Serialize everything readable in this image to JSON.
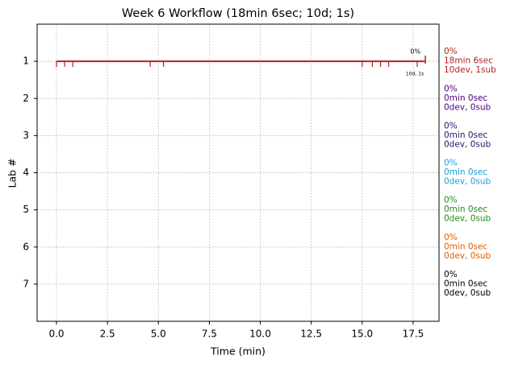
{
  "chart_data": {
    "type": "timeline",
    "title": "Week 6 Workflow (18min 6sec; 10d; 1s)",
    "x_label": "Time (min)",
    "y_label": "Lab #",
    "xlim": [
      -0.95,
      18.77
    ],
    "xticks": [
      {
        "value": 0,
        "label": "0.0"
      },
      2.5,
      {
        "value": 5,
        "label": "5.0"
      },
      7.5,
      {
        "value": 10,
        "label": "10.0"
      },
      12.5,
      {
        "value": 15,
        "label": "15.0"
      },
      17.5
    ],
    "ylim": [
      8,
      0
    ],
    "yticks": [
      1,
      2,
      3,
      4,
      5,
      6,
      7
    ],
    "grid": true,
    "segment": {
      "lab": 1,
      "start": 0,
      "end": 18.1,
      "color": "#b22222"
    },
    "event_times": [
      0,
      0.4,
      0.8,
      4.6,
      5.25,
      15.0,
      15.5,
      15.9,
      16.3,
      17.7
    ],
    "end_time": 18.1,
    "annotations": [
      "0%",
      "10d, 1s"
    ],
    "right_labels": [
      {
        "lines": [
          "0%",
          "18min 6sec",
          "10dev, 1sub"
        ],
        "color": "#b22222"
      },
      {
        "lines": [
          "0%",
          "0min 0sec",
          "0dev, 0sub"
        ],
        "color": "#4b0082"
      },
      {
        "lines": [
          "0%",
          "0min 0sec",
          "0dev, 0sub"
        ],
        "color": "#191970"
      },
      {
        "lines": [
          "0%",
          "0min 0sec",
          "0dev, 0sub"
        ],
        "color": "#1f9bd6"
      },
      {
        "lines": [
          "0%",
          "0min 0sec",
          "0dev, 0sub"
        ],
        "color": "#228b22"
      },
      {
        "lines": [
          "0%",
          "0min 0sec",
          "0dev, 0sub"
        ],
        "color": "#d95f02"
      },
      {
        "lines": [
          "0%",
          "0min 0sec",
          "0dev, 0sub"
        ],
        "color": "#000000"
      }
    ]
  }
}
